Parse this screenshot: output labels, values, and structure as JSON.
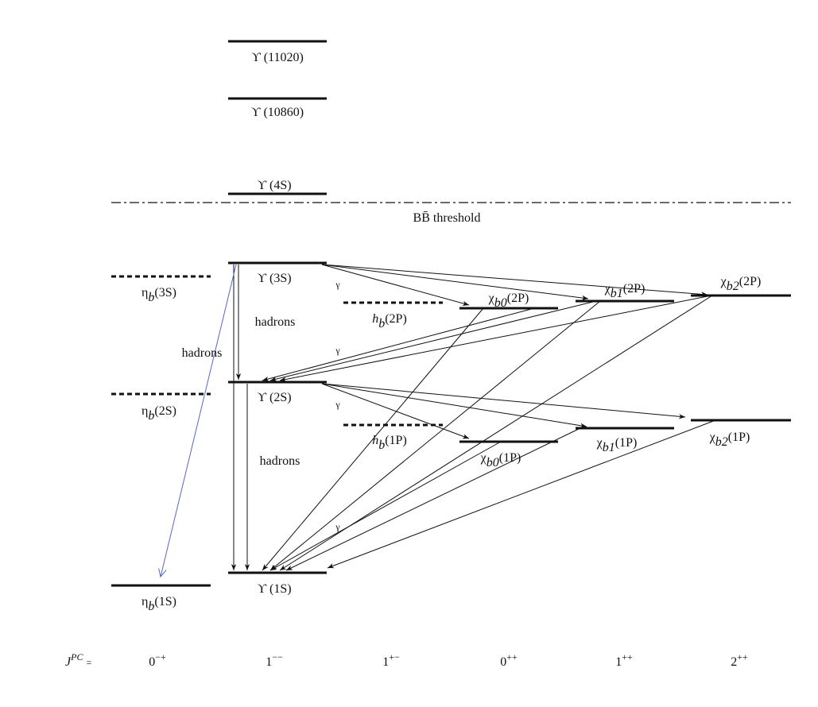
{
  "levels": {
    "upsilon_11020": "ϒ (11020)",
    "upsilon_10860": "ϒ (10860)",
    "upsilon_4S": "ϒ (4S)",
    "threshold": "BB̄ threshold",
    "upsilon_3S": "ϒ (3S)",
    "upsilon_2S": "ϒ (2S)",
    "upsilon_1S": "ϒ (1S)",
    "eta_3S": {
      "symbol": "η",
      "subscript": "b",
      "state": "(3S)"
    },
    "eta_2S": {
      "symbol": "η",
      "subscript": "b",
      "state": "(2S)"
    },
    "eta_1S": {
      "symbol": "η",
      "subscript": "b",
      "state": "(1S)"
    },
    "h_2P": {
      "symbol": "h",
      "subscript": "b",
      "state": "(2P)"
    },
    "h_1P": {
      "symbol": "h",
      "subscript": "b",
      "state": "(1P)"
    },
    "chi0_2P": {
      "symbol": "χ",
      "subscript": "b0",
      "state": "(2P)"
    },
    "chi1_2P": {
      "symbol": "χ",
      "subscript": "b1",
      "state": "(2P)"
    },
    "chi2_2P": {
      "symbol": "χ",
      "subscript": "b2",
      "state": "(2P)"
    },
    "chi0_1P": {
      "symbol": "χ",
      "subscript": "b0",
      "state": "(1P)"
    },
    "chi1_1P": {
      "symbol": "χ",
      "subscript": "b1",
      "state": "(1P)"
    },
    "chi2_1P": {
      "symbol": "χ",
      "subscript": "b2",
      "state": "(1P)"
    }
  },
  "transitions": {
    "gamma": [
      "γ",
      "γ",
      "γ",
      "γ"
    ],
    "hadrons": [
      "hadrons",
      "hadrons",
      "hadrons"
    ]
  },
  "quantum_numbers": {
    "label": {
      "symbol": "J",
      "superscript": "PC",
      "suffix": "="
    },
    "columns": [
      {
        "base": "0",
        "superscript": "−+"
      },
      {
        "base": "1",
        "superscript": "−−"
      },
      {
        "base": "1",
        "superscript": "+−"
      },
      {
        "base": "0",
        "superscript": "++"
      },
      {
        "base": "1",
        "superscript": "++"
      },
      {
        "base": "2",
        "superscript": "++"
      }
    ]
  }
}
